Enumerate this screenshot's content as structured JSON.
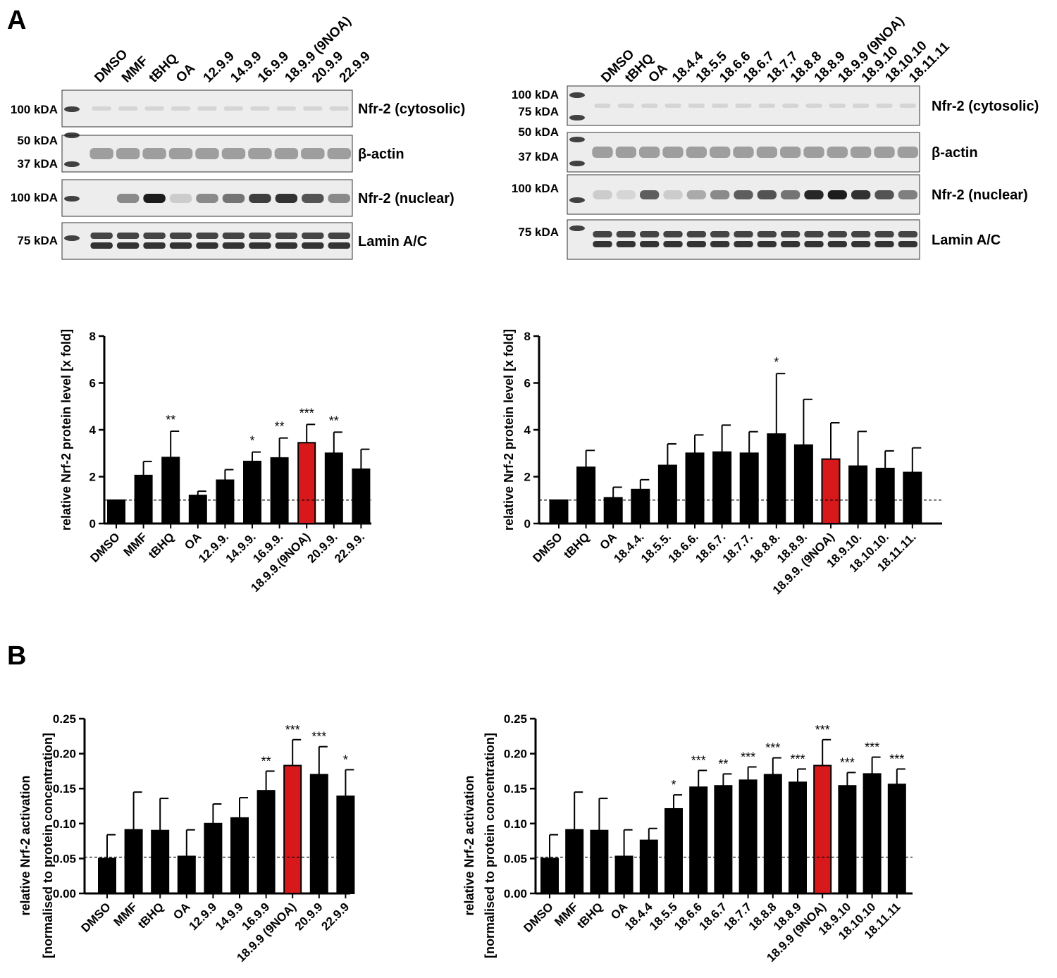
{
  "panels": {
    "a": "A",
    "b": "B"
  },
  "blot_left": {
    "lanes": [
      "DMSO",
      "MMF",
      "tBHQ",
      "OA",
      "12.9.9",
      "14.9.9",
      "16.9.9",
      "18.9.9 (9NOA)",
      "20.9.9",
      "22.9.9"
    ],
    "rows": [
      {
        "label": "Nfr-2 (cytosolic)",
        "markers": [
          "100 kDA"
        ]
      },
      {
        "label": "β-actin",
        "markers": [
          "50 kDA",
          "37 kDA"
        ]
      },
      {
        "label": "Nfr-2 (nuclear)",
        "markers": [
          "100 kDA"
        ]
      },
      {
        "label": "Lamin A/C",
        "markers": [
          "75 kDA"
        ]
      }
    ]
  },
  "blot_right": {
    "lanes": [
      "DMSO",
      "tBHQ",
      "OA",
      "18.4.4",
      "18.5.5",
      "18.6.6",
      "18.6.7",
      "18.7.7",
      "18.8.8",
      "18.8.9",
      "18.9.9 (9NOA)",
      "18.9.10",
      "18.10.10",
      "18.11.11"
    ],
    "rows": [
      {
        "label": "Nfr-2 (cytosolic)",
        "markers": [
          "100 kDA",
          "75 kDA"
        ]
      },
      {
        "label": "β-actin",
        "markers": [
          "50 kDA",
          "37 kDA"
        ]
      },
      {
        "label": "Nfr-2 (nuclear)",
        "markers": [
          "100 kDA"
        ]
      },
      {
        "label": "Lamin A/C",
        "markers": [
          "75 kDA"
        ]
      }
    ]
  },
  "colors": {
    "bar": "#000000",
    "highlight": "#d7191c"
  },
  "chart_data": [
    {
      "id": "A-left",
      "type": "bar",
      "ylabel": "relative Nrf-2 protein level [x fold]",
      "ylim": [
        0,
        8
      ],
      "yticks": [
        "0",
        "2",
        "4",
        "6",
        "8"
      ],
      "baseline": 1.0,
      "categories": [
        "DMSO",
        "MMF",
        "tBHQ",
        "OA",
        "12.9.9.",
        "14.9.9.",
        "16.9.9.",
        "18.9.9.(9NOA)",
        "20.9.9.",
        "22.9.9."
      ],
      "values": [
        1.0,
        2.05,
        2.82,
        1.2,
        1.85,
        2.65,
        2.8,
        3.45,
        3.0,
        2.32
      ],
      "errors": [
        0.0,
        0.6,
        1.12,
        0.18,
        0.45,
        0.4,
        0.85,
        0.78,
        0.9,
        0.85
      ],
      "significance": [
        "",
        "",
        "**",
        "",
        "",
        "*",
        "**",
        "***",
        "**",
        ""
      ],
      "highlight_index": 7
    },
    {
      "id": "A-right",
      "type": "bar",
      "ylabel": "relative Nrf-2 protein level [x fold]",
      "ylim": [
        0,
        8
      ],
      "yticks": [
        "0",
        "2",
        "4",
        "6",
        "8"
      ],
      "baseline": 1.0,
      "categories": [
        "DMSO",
        "tBHQ",
        "OA",
        "18.4.4.",
        "18.5.5.",
        "18.6.6.",
        "18.6.7.",
        "18.7.7.",
        "18.8.8.",
        "18.8.9.",
        "18.9.9. (9NOA)",
        "18.9.10.",
        "18.10.10.",
        "18.11.11."
      ],
      "values": [
        1.0,
        2.4,
        1.1,
        1.45,
        2.48,
        3.0,
        3.05,
        3.0,
        3.82,
        3.35,
        2.75,
        2.45,
        2.35,
        2.18
      ],
      "errors": [
        0.0,
        0.72,
        0.45,
        0.42,
        0.92,
        0.78,
        1.15,
        0.92,
        2.58,
        1.95,
        1.55,
        1.48,
        0.75,
        1.05
      ],
      "significance": [
        "",
        "",
        "",
        "",
        "",
        "",
        "",
        "",
        "*",
        "",
        "",
        "",
        "",
        ""
      ],
      "highlight_index": 10
    },
    {
      "id": "B-left",
      "type": "bar",
      "ylabel": "relative Nrf-2 activation",
      "ylabel2": "[normalised to protein concentration]",
      "ylim": [
        0,
        0.25
      ],
      "yticks": [
        "0.00",
        "0.05",
        "0.10",
        "0.15",
        "0.20",
        "0.25"
      ],
      "baseline": 0.052,
      "categories": [
        "DMSO",
        "MMF",
        "tBHQ",
        "OA",
        "12.9.9",
        "14.9.9",
        "16.9.9",
        "18.9.9 (9NOA)",
        "20.9.9",
        "22.9.9"
      ],
      "values": [
        0.05,
        0.091,
        0.09,
        0.053,
        0.1,
        0.108,
        0.147,
        0.183,
        0.17,
        0.139
      ],
      "errors": [
        0.034,
        0.054,
        0.046,
        0.038,
        0.028,
        0.029,
        0.028,
        0.037,
        0.04,
        0.038
      ],
      "significance": [
        "",
        "",
        "",
        "",
        "",
        "",
        "**",
        "***",
        "***",
        "*"
      ],
      "highlight_index": 7
    },
    {
      "id": "B-right",
      "type": "bar",
      "ylabel": "relative Nrf-2 activation",
      "ylabel2": "[normalised to protein concentration]",
      "ylim": [
        0,
        0.25
      ],
      "yticks": [
        "0.00",
        "0.05",
        "0.10",
        "0.15",
        "0.20",
        "0.25"
      ],
      "baseline": 0.052,
      "categories": [
        "DMSO",
        "MMF",
        "tBHQ",
        "OA",
        "18.4.4",
        "18.5.5",
        "18.6.6",
        "18.6.7",
        "18.7.7",
        "18.8.8",
        "18.8.9",
        "18.9.9 (9NOA)",
        "18.9.10",
        "18.10.10",
        "18.11.11"
      ],
      "values": [
        0.05,
        0.091,
        0.09,
        0.053,
        0.076,
        0.121,
        0.152,
        0.154,
        0.162,
        0.17,
        0.159,
        0.183,
        0.154,
        0.171,
        0.156
      ],
      "errors": [
        0.034,
        0.054,
        0.046,
        0.038,
        0.017,
        0.02,
        0.024,
        0.017,
        0.019,
        0.024,
        0.019,
        0.037,
        0.019,
        0.024,
        0.022
      ],
      "significance": [
        "",
        "",
        "",
        "",
        "",
        "*",
        "***",
        "**",
        "***",
        "***",
        "***",
        "***",
        "***",
        "***",
        "***"
      ],
      "highlight_index": 11
    }
  ]
}
